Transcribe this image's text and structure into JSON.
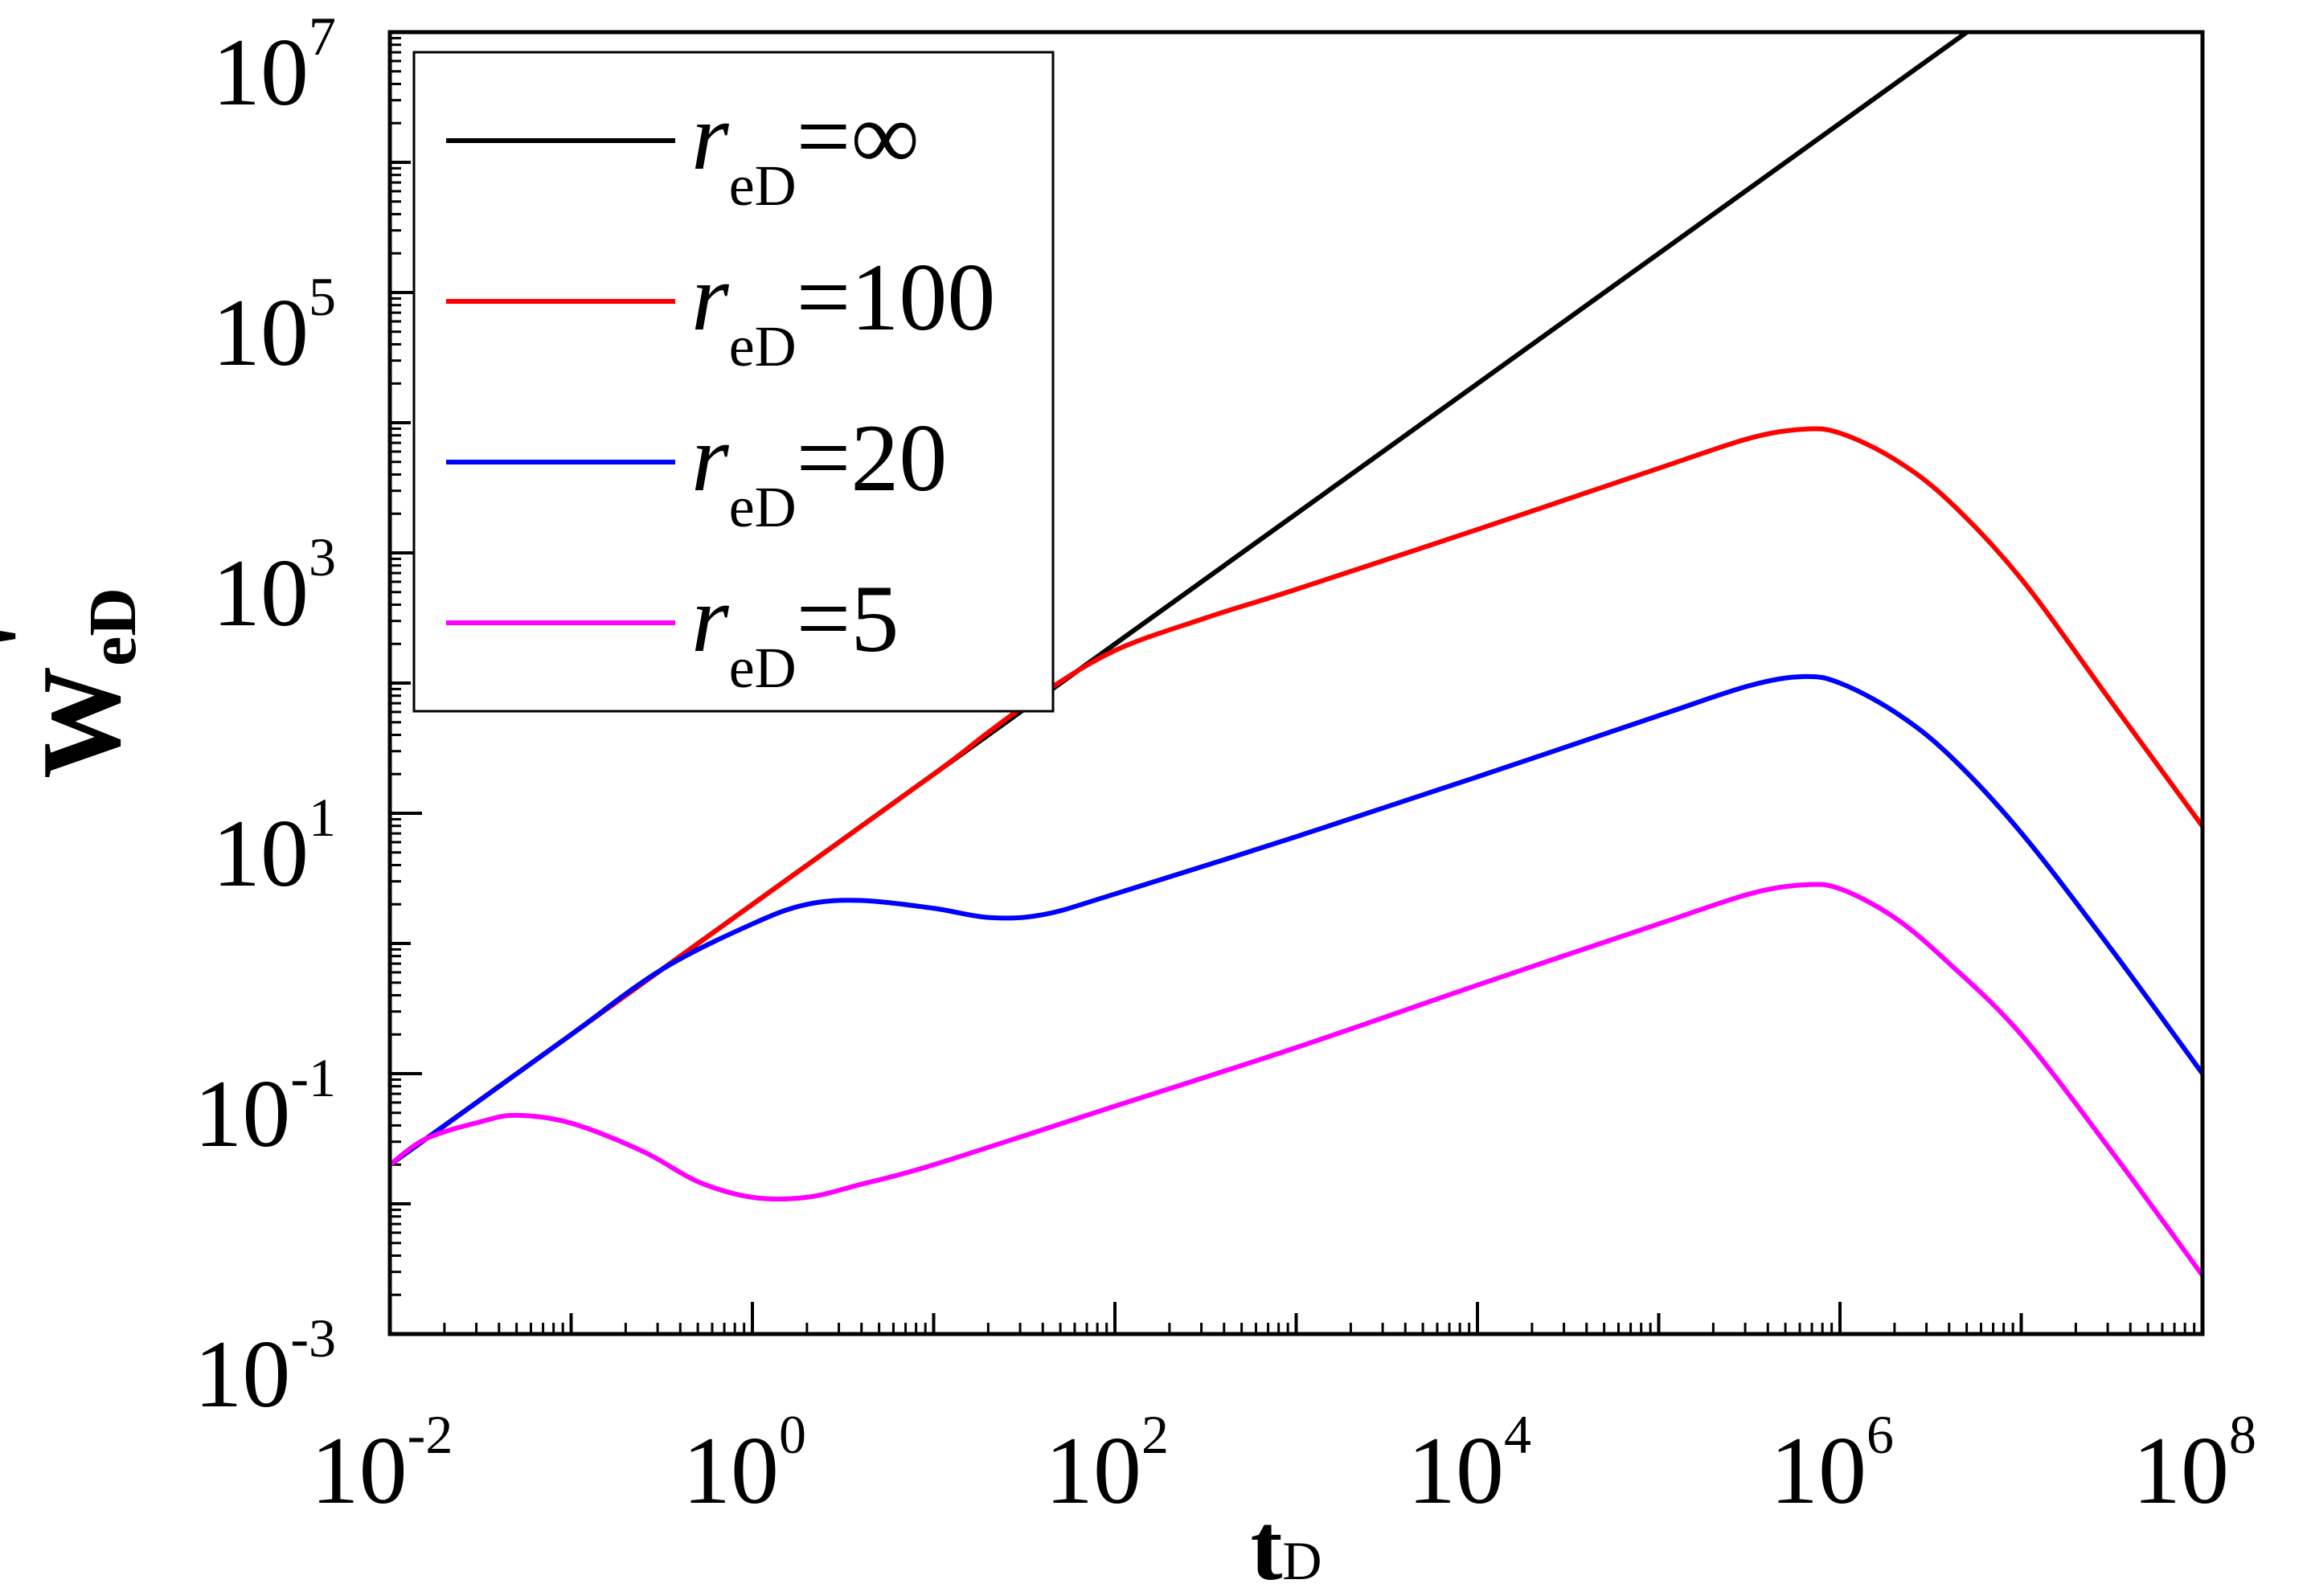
{
  "chart_data": {
    "type": "line",
    "title": "",
    "xscale": "log",
    "yscale": "log",
    "xlim_exp": [
      -2,
      8
    ],
    "ylim_exp": [
      -3,
      7
    ],
    "x_tick_exponents": [
      -2,
      0,
      2,
      4,
      6,
      8
    ],
    "y_tick_exponents": [
      -3,
      -1,
      1,
      3,
      5,
      7
    ],
    "tick_base": "10",
    "xlabel": {
      "main": "t",
      "sub": "D"
    },
    "ylabel": {
      "main": "W",
      "sub": "eD",
      "mark": "'"
    },
    "legend_position": "top-left",
    "series": [
      {
        "name": "∞",
        "label_prefix": "r",
        "label_sub": "eD",
        "label_eq": "=∞",
        "color": "#000000",
        "points": [
          [
            -2,
            -1.7
          ],
          [
            -1,
            -0.7
          ],
          [
            0,
            0.3
          ],
          [
            1,
            1.3
          ],
          [
            2,
            2.3
          ],
          [
            3,
            3.3
          ],
          [
            4,
            4.3
          ],
          [
            5,
            5.3
          ],
          [
            6,
            6.3
          ],
          [
            6.8,
            7.1
          ]
        ]
      },
      {
        "name": "100",
        "label_prefix": "r",
        "label_sub": "eD",
        "label_eq": "=100",
        "color": "#ff0000",
        "points": [
          [
            -2,
            -1.7
          ],
          [
            -1,
            -0.7
          ],
          [
            0,
            0.3
          ],
          [
            1,
            1.3
          ],
          [
            1.3,
            1.62
          ],
          [
            1.6,
            1.92
          ],
          [
            2,
            2.25
          ],
          [
            2.5,
            2.5
          ],
          [
            3,
            2.72
          ],
          [
            4,
            3.18
          ],
          [
            5,
            3.65
          ],
          [
            5.5,
            3.88
          ],
          [
            5.8,
            3.95
          ],
          [
            6,
            3.92
          ],
          [
            6.3,
            3.72
          ],
          [
            6.6,
            3.4
          ],
          [
            7,
            2.8
          ],
          [
            7.5,
            1.85
          ],
          [
            8,
            0.9
          ]
        ]
      },
      {
        "name": "20",
        "label_prefix": "r",
        "label_sub": "eD",
        "label_eq": "=20",
        "color": "#0000ff",
        "points": [
          [
            -2,
            -1.7
          ],
          [
            -1.5,
            -1.2
          ],
          [
            -1,
            -0.7
          ],
          [
            -0.5,
            -0.2
          ],
          [
            0,
            0.15
          ],
          [
            0.3,
            0.3
          ],
          [
            0.6,
            0.33
          ],
          [
            1,
            0.27
          ],
          [
            1.3,
            0.2
          ],
          [
            1.6,
            0.22
          ],
          [
            2,
            0.38
          ],
          [
            3,
            0.82
          ],
          [
            4,
            1.28
          ],
          [
            5,
            1.75
          ],
          [
            5.5,
            1.98
          ],
          [
            5.8,
            2.05
          ],
          [
            6,
            2.0
          ],
          [
            6.3,
            1.78
          ],
          [
            6.6,
            1.45
          ],
          [
            7,
            0.85
          ],
          [
            7.5,
            -0.05
          ],
          [
            8,
            -1.0
          ]
        ]
      },
      {
        "name": "5",
        "label_prefix": "r",
        "label_sub": "eD",
        "label_eq": "=5",
        "color": "#ff00ff",
        "points": [
          [
            -2,
            -1.7
          ],
          [
            -1.8,
            -1.5
          ],
          [
            -1.5,
            -1.37
          ],
          [
            -1.3,
            -1.32
          ],
          [
            -1,
            -1.38
          ],
          [
            -0.6,
            -1.6
          ],
          [
            -0.3,
            -1.83
          ],
          [
            0,
            -1.95
          ],
          [
            0.3,
            -1.95
          ],
          [
            0.6,
            -1.85
          ],
          [
            1,
            -1.7
          ],
          [
            2,
            -1.25
          ],
          [
            3,
            -0.8
          ],
          [
            4,
            -0.32
          ],
          [
            5,
            0.15
          ],
          [
            5.5,
            0.38
          ],
          [
            5.8,
            0.45
          ],
          [
            6,
            0.42
          ],
          [
            6.3,
            0.2
          ],
          [
            6.6,
            -0.15
          ],
          [
            7,
            -0.7
          ],
          [
            7.5,
            -1.6
          ],
          [
            8,
            -2.55
          ]
        ]
      }
    ]
  }
}
